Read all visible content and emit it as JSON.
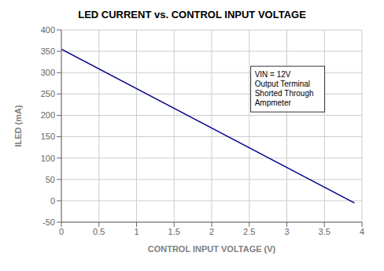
{
  "chart_data": {
    "type": "line",
    "title": "LED CURRENT vs. CONTROL INPUT VOLTAGE",
    "xlabel": "CONTROL INPUT VOLTAGE (V)",
    "ylabel": "ILED (mA)",
    "x": [
      0.0,
      3.9
    ],
    "values": [
      355,
      -5
    ],
    "color": "#00008B",
    "xlim": [
      0.0,
      4.0
    ],
    "ylim": [
      -50,
      400
    ],
    "xticks": [
      0,
      0.5,
      1,
      1.5,
      2,
      2.5,
      3,
      3.5,
      4
    ],
    "yticks": [
      -50,
      0,
      50,
      100,
      150,
      200,
      250,
      300,
      350,
      400
    ],
    "grid": true,
    "annotations": [
      {
        "text": "VIN = 12V\nOutput Terminal\nShorted Through\nAmpmeter",
        "x": 2.52,
        "y": 315
      }
    ]
  }
}
